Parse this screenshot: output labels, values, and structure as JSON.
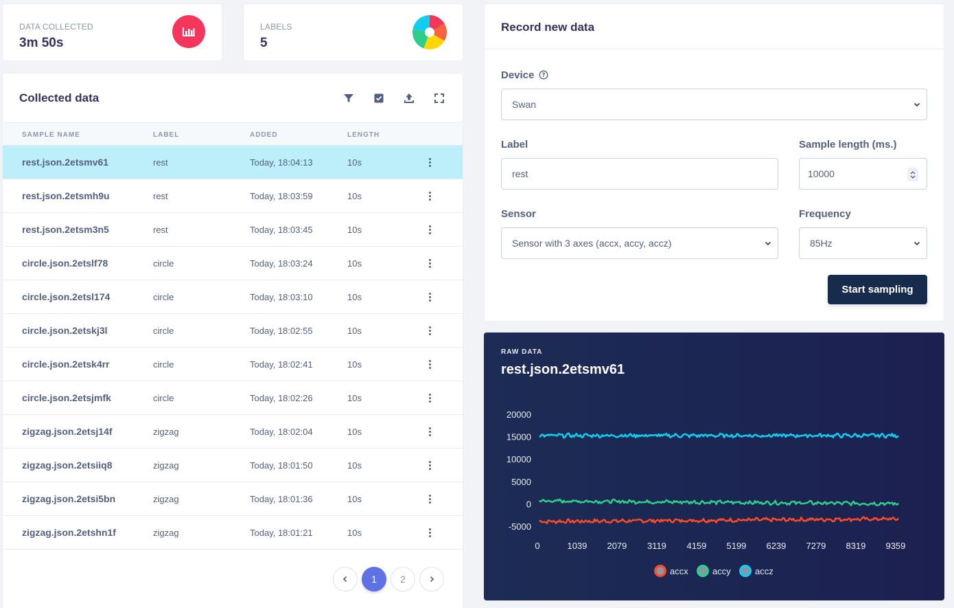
{
  "stats": {
    "data_collected": {
      "label": "DATA COLLECTED",
      "value": "3m 50s",
      "icon": "bar-chart-icon"
    },
    "labels": {
      "label": "LABELS",
      "value": "5",
      "icon": "pie-chart-icon"
    }
  },
  "collected": {
    "title": "Collected data",
    "toolbar": [
      "filter-icon",
      "select-icon",
      "upload-icon",
      "expand-icon"
    ],
    "columns": {
      "name": "SAMPLE NAME",
      "label": "LABEL",
      "added": "ADDED",
      "length": "LENGTH"
    },
    "rows": [
      {
        "name": "rest.json.2etsmv61",
        "label": "rest",
        "added": "Today, 18:04:13",
        "length": "10s"
      },
      {
        "name": "rest.json.2etsmh9u",
        "label": "rest",
        "added": "Today, 18:03:59",
        "length": "10s"
      },
      {
        "name": "rest.json.2etsm3n5",
        "label": "rest",
        "added": "Today, 18:03:45",
        "length": "10s"
      },
      {
        "name": "circle.json.2etslf78",
        "label": "circle",
        "added": "Today, 18:03:24",
        "length": "10s"
      },
      {
        "name": "circle.json.2etsl174",
        "label": "circle",
        "added": "Today, 18:03:10",
        "length": "10s"
      },
      {
        "name": "circle.json.2etskj3l",
        "label": "circle",
        "added": "Today, 18:02:55",
        "length": "10s"
      },
      {
        "name": "circle.json.2etsk4rr",
        "label": "circle",
        "added": "Today, 18:02:41",
        "length": "10s"
      },
      {
        "name": "circle.json.2etsjmfk",
        "label": "circle",
        "added": "Today, 18:02:26",
        "length": "10s"
      },
      {
        "name": "zigzag.json.2etsj14f",
        "label": "zigzag",
        "added": "Today, 18:02:04",
        "length": "10s"
      },
      {
        "name": "zigzag.json.2etsiiq8",
        "label": "zigzag",
        "added": "Today, 18:01:50",
        "length": "10s"
      },
      {
        "name": "zigzag.json.2etsi5bn",
        "label": "zigzag",
        "added": "Today, 18:01:36",
        "length": "10s"
      },
      {
        "name": "zigzag.json.2etshn1f",
        "label": "zigzag",
        "added": "Today, 18:01:21",
        "length": "10s"
      }
    ],
    "selected_index": 0,
    "pagination": {
      "pages": [
        "1",
        "2"
      ],
      "current": "1"
    }
  },
  "record": {
    "title": "Record new data",
    "device_label": "Device",
    "device_value": "Swan",
    "label_label": "Label",
    "label_value": "rest",
    "sample_length_label": "Sample length (ms.)",
    "sample_length_value": "10000",
    "sensor_label": "Sensor",
    "sensor_value": "Sensor with 3 axes (accx, accy, accz)",
    "frequency_label": "Frequency",
    "frequency_value": "85Hz",
    "start_button": "Start sampling"
  },
  "raw": {
    "kicker": "RAW DATA",
    "title": "rest.json.2etsmv61"
  },
  "chart_data": {
    "type": "line",
    "title": "rest.json.2etsmv61",
    "y_ticks": [
      "20000",
      "15000",
      "10000",
      "5000",
      "0",
      "-5000"
    ],
    "x_ticks": [
      "0",
      "1039",
      "2079",
      "3119",
      "4159",
      "5199",
      "6239",
      "7279",
      "8319",
      "9359"
    ],
    "ylim": [
      -5000,
      20000
    ],
    "xlim": [
      0,
      9880
    ],
    "series": [
      {
        "name": "accx",
        "color": "#fb4b27",
        "approx_value": -3600,
        "start": -3800,
        "end": -3200
      },
      {
        "name": "accy",
        "color": "#2dce89",
        "approx_value": 400,
        "start": 800,
        "end": 200
      },
      {
        "name": "accz",
        "color": "#11cdef",
        "approx_value": 15400,
        "start": 15400,
        "end": 15400
      }
    ],
    "legend_position": "bottom"
  }
}
